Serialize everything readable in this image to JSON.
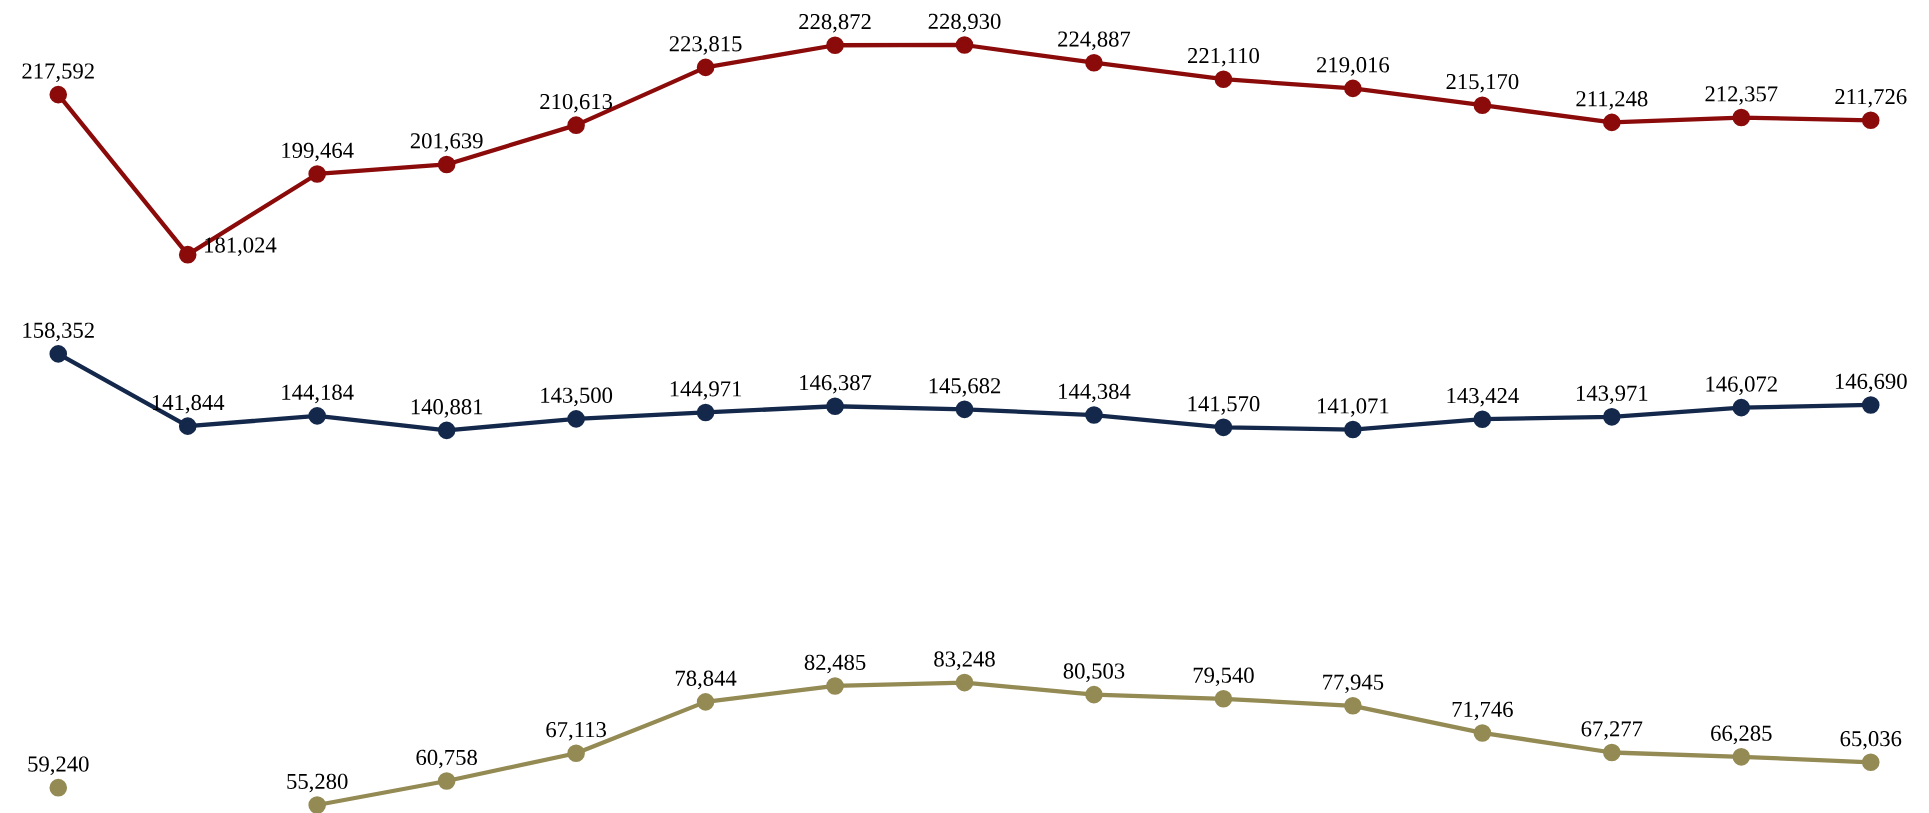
{
  "chart_data": {
    "type": "line",
    "categories": [
      null,
      null,
      null,
      null,
      null,
      null,
      null,
      null,
      null,
      null,
      null,
      null,
      null,
      null,
      null
    ],
    "marker": "circle",
    "line_style": "solid",
    "legend": false,
    "series": [
      {
        "color": "#8B0A0A",
        "values": [
          217592,
          181024,
          199464,
          201639,
          210613,
          223815,
          228872,
          228930,
          224887,
          221110,
          219016,
          215170,
          211248,
          212357,
          211726
        ],
        "value_labels": [
          "217,592",
          "181,024",
          "199,464",
          "201,639",
          "210,613",
          "223,815",
          "228,872",
          "228,930",
          "224,887",
          "221,110",
          "219,016",
          "215,170",
          "211,248",
          "212,357",
          "211,726"
        ]
      },
      {
        "color": "#14284B",
        "values": [
          158352,
          141844,
          144184,
          140881,
          143500,
          144971,
          146387,
          145682,
          144384,
          141570,
          141071,
          143424,
          143971,
          146072,
          146690
        ],
        "value_labels": [
          "158,352",
          "141,844",
          "144,184",
          "140,881",
          "143,500",
          "144,971",
          "146,387",
          "145,682",
          "144,384",
          "141,570",
          "141,071",
          "143,424",
          "143,971",
          "146,072",
          "146,690"
        ]
      },
      {
        "color": "#948A54",
        "values": [
          59240,
          null,
          55280,
          60758,
          67113,
          78844,
          82485,
          83248,
          80503,
          79540,
          77945,
          71746,
          67277,
          66285,
          65036
        ],
        "value_labels": [
          "59,240",
          null,
          "55,280",
          "60,758",
          "67,113",
          "78,844",
          "82,485",
          "83,248",
          "80,503",
          "79,540",
          "77,945",
          "71,746",
          "67,277",
          "66,285",
          "65,036"
        ]
      }
    ]
  }
}
